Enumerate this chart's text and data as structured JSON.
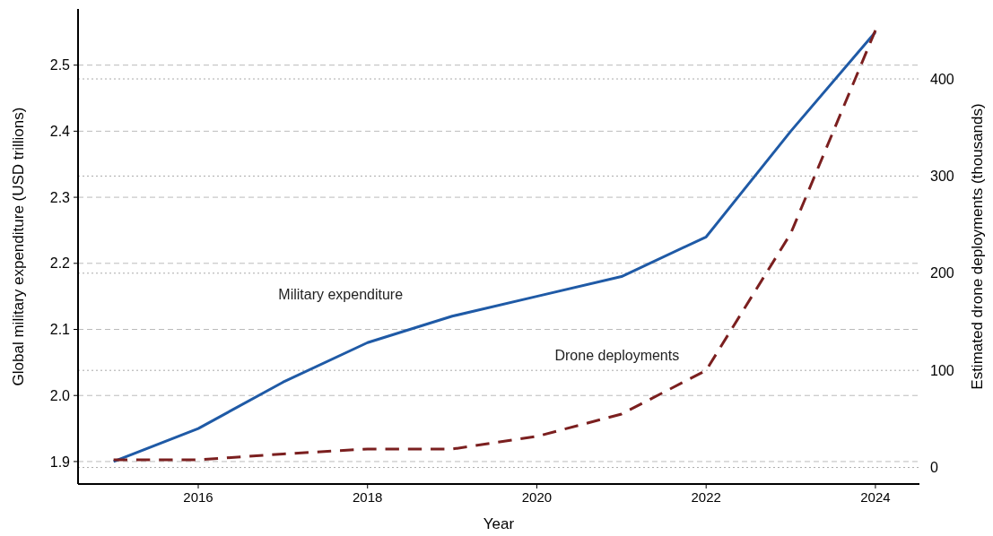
{
  "chart_data": {
    "type": "line",
    "xlabel": "Year",
    "ylabel": "Global military expenditure (USD trillions)",
    "y2label": "Estimated drone deployments (thousands)",
    "x": [
      2015,
      2016,
      2017,
      2018,
      2019,
      2020,
      2021,
      2022,
      2023,
      2024
    ],
    "xlim": [
      2014.58,
      2024.52
    ],
    "xticks": [
      2016,
      2018,
      2020,
      2022,
      2024
    ],
    "ylim": [
      1.866,
      2.585
    ],
    "yticks": [
      1.9,
      {
        "value": 2.0,
        "label": "2.0"
      },
      2.1,
      2.2,
      2.3,
      2.4,
      2.5
    ],
    "y2lim": [
      -17,
      472
    ],
    "y2ticks": [
      0,
      100,
      200,
      300,
      400
    ],
    "grid": "y",
    "series": [
      {
        "name": "Military expenditure",
        "color": "#1f5aa6",
        "line_style": "solid",
        "values": [
          1.9,
          1.95,
          2.02,
          2.08,
          2.12,
          2.15,
          2.18,
          2.24,
          2.4,
          2.55
        ]
      },
      {
        "name": "Drone deployments",
        "color": "#7b1f1f",
        "line_style": "dashed",
        "axis": "y2",
        "values": [
          8,
          8,
          14,
          19,
          19,
          32,
          55,
          100,
          241,
          450
        ]
      }
    ]
  }
}
